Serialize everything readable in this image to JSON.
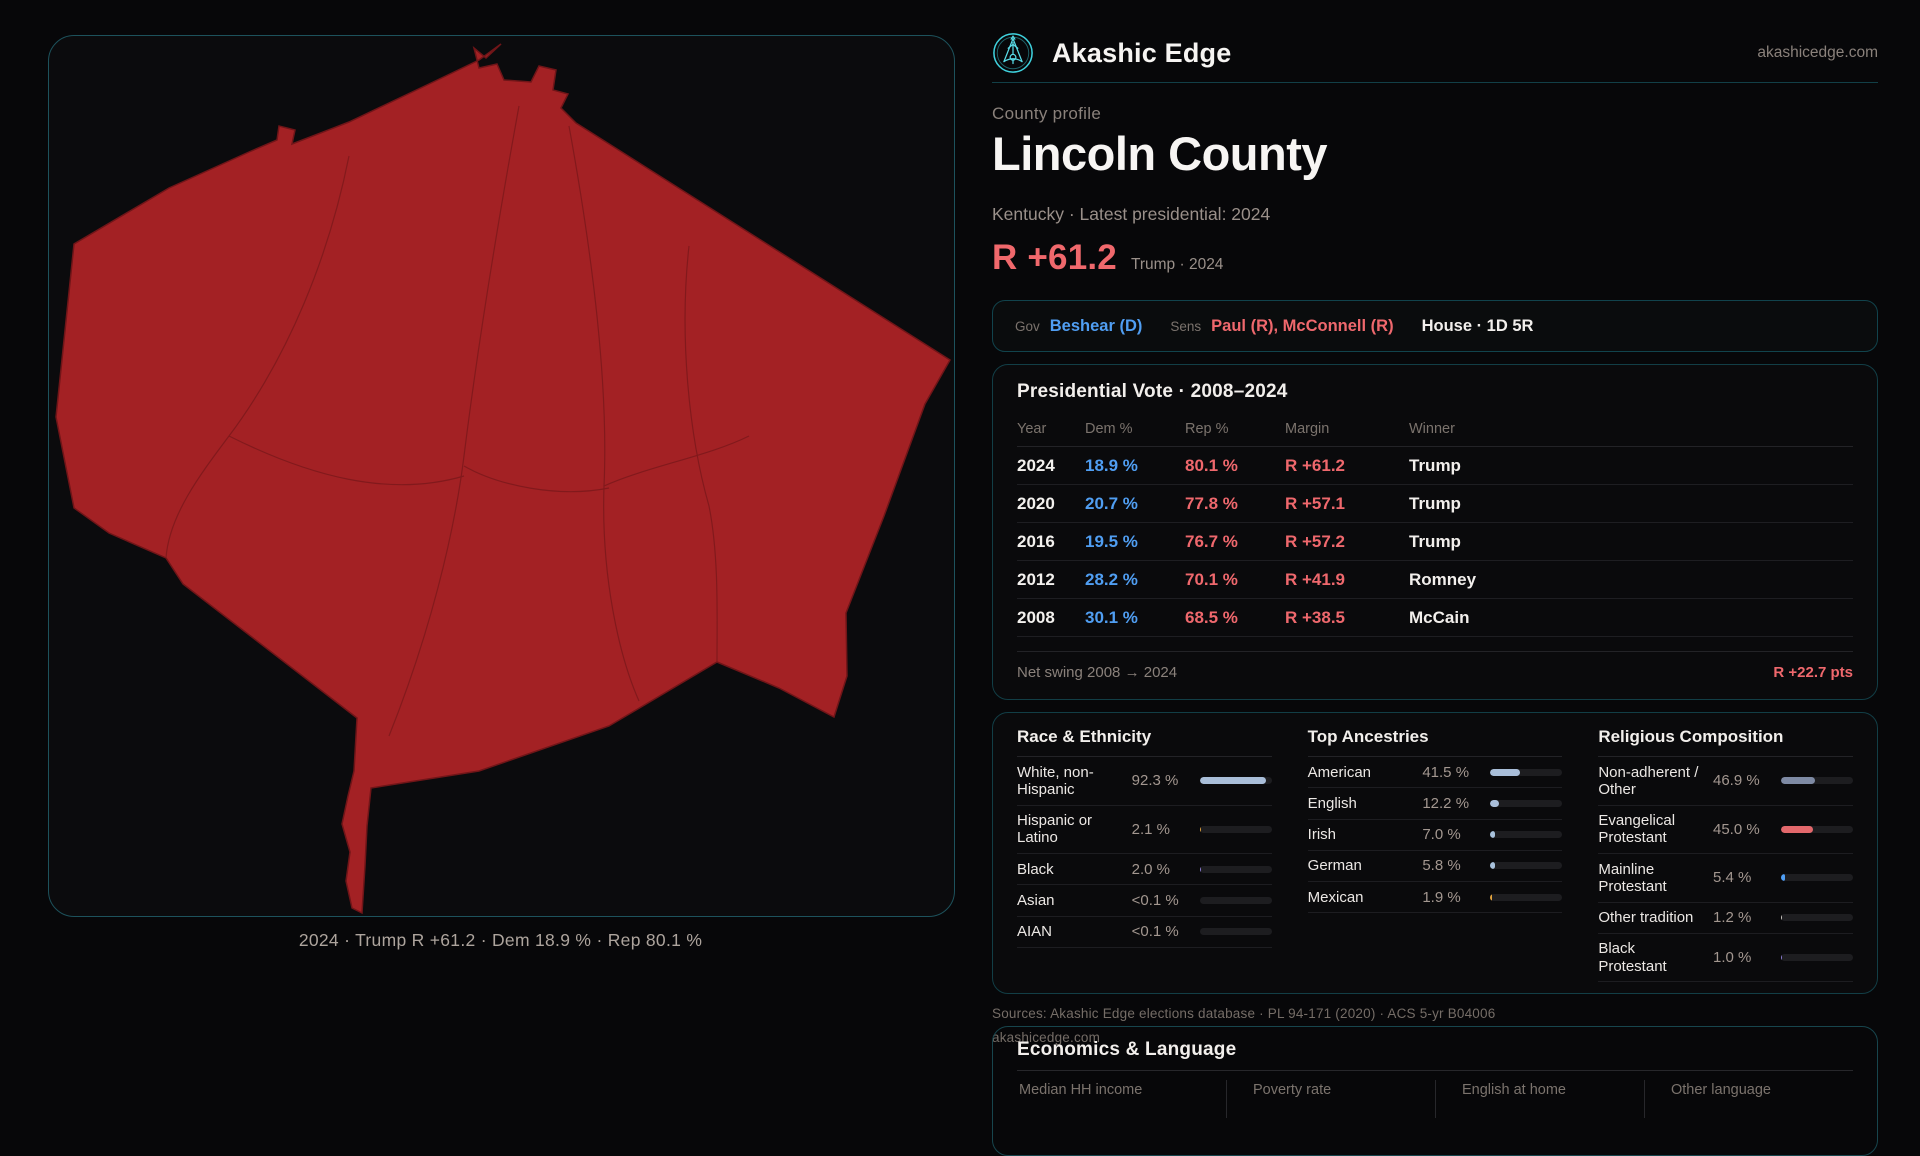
{
  "header": {
    "brand": "Akashic Edge",
    "domain": "akashicedge.com"
  },
  "profile": {
    "eyebrow": "County profile",
    "title": "Lincoln County",
    "subtitle": "Kentucky · Latest presidential: 2024",
    "margin": "R +61.2",
    "margin_note": "Trump · 2024"
  },
  "officials": {
    "gov_label": "Gov",
    "gov": "Beshear (D)",
    "sens_label": "Sens",
    "sens": "Paul (R), McConnell (R)",
    "house": "House · 1D 5R"
  },
  "map": {
    "caption": "2024 · Trump R +61.2 · Dem 18.9 % · Rep 80.1 %",
    "county_fill": "#a32124",
    "boundary_color": "#7f191c"
  },
  "vote_table": {
    "title": "Presidential Vote · 2008–2024",
    "columns": [
      "Year",
      "Dem %",
      "Rep %",
      "Margin",
      "Winner"
    ],
    "rows": [
      [
        "2024",
        "18.9 %",
        "80.1 %",
        "R +61.2",
        "Trump"
      ],
      [
        "2020",
        "20.7 %",
        "77.8 %",
        "R +57.1",
        "Trump"
      ],
      [
        "2016",
        "19.5 %",
        "76.7 %",
        "R +57.2",
        "Trump"
      ],
      [
        "2012",
        "28.2 %",
        "70.1 %",
        "R +41.9",
        "Romney"
      ],
      [
        "2008",
        "30.1 %",
        "68.5 %",
        "R +38.5",
        "McCain"
      ]
    ],
    "swing_label": "Net swing 2008 → 2024",
    "swing_value": "R +22.7 pts"
  },
  "demographics": {
    "race": {
      "title": "Race & Ethnicity",
      "rows": [
        {
          "label": "White, non-Hispanic",
          "value": "92.3 %",
          "pct": 92.3,
          "color": "#a9bed9"
        },
        {
          "label": "Hispanic or Latino",
          "value": "2.1 %",
          "pct": 2.1,
          "color": "#e0a23e"
        },
        {
          "label": "Black",
          "value": "2.0 %",
          "pct": 2.0,
          "color": "#8d7dd6"
        },
        {
          "label": "Asian",
          "value": "<0.1 %",
          "pct": 0,
          "color": "#a9bed9"
        },
        {
          "label": "AIAN",
          "value": "<0.1 %",
          "pct": 0,
          "color": "#a9bed9"
        }
      ]
    },
    "ancestry": {
      "title": "Top Ancestries",
      "rows": [
        {
          "label": "American",
          "value": "41.5 %",
          "pct": 41.5,
          "color": "#a9bed9"
        },
        {
          "label": "English",
          "value": "12.2 %",
          "pct": 12.2,
          "color": "#a9bed9"
        },
        {
          "label": "Irish",
          "value": "7.0 %",
          "pct": 7.0,
          "color": "#a9c2dc"
        },
        {
          "label": "German",
          "value": "5.8 %",
          "pct": 5.8,
          "color": "#a9c2dc"
        },
        {
          "label": "Mexican",
          "value": "1.9 %",
          "pct": 1.9,
          "color": "#e0a23e"
        }
      ]
    },
    "religion": {
      "title": "Religious Composition",
      "rows": [
        {
          "label": "Non-adherent / Other",
          "value": "46.9 %",
          "pct": 46.9,
          "color": "#7e8aa4"
        },
        {
          "label": "Evangelical Protestant",
          "value": "45.0 %",
          "pct": 45.0,
          "color": "#e3686c"
        },
        {
          "label": "Mainline Protestant",
          "value": "5.4 %",
          "pct": 5.4,
          "color": "#4f9ef4"
        },
        {
          "label": "Other tradition",
          "value": "1.2 %",
          "pct": 1.2,
          "color": "#cfcac5"
        },
        {
          "label": "Black Protestant",
          "value": "1.0 %",
          "pct": 1.0,
          "color": "#8d7dd6"
        }
      ]
    }
  },
  "sources": {
    "line1": "Sources: Akashic Edge elections database · PL 94-171 (2020) · ACS 5-yr B04006",
    "line2": "akashicedge.com"
  },
  "economics": {
    "title": "Economics & Language",
    "columns": [
      "Median HH income",
      "Poverty rate",
      "English at home",
      "Other language"
    ]
  }
}
